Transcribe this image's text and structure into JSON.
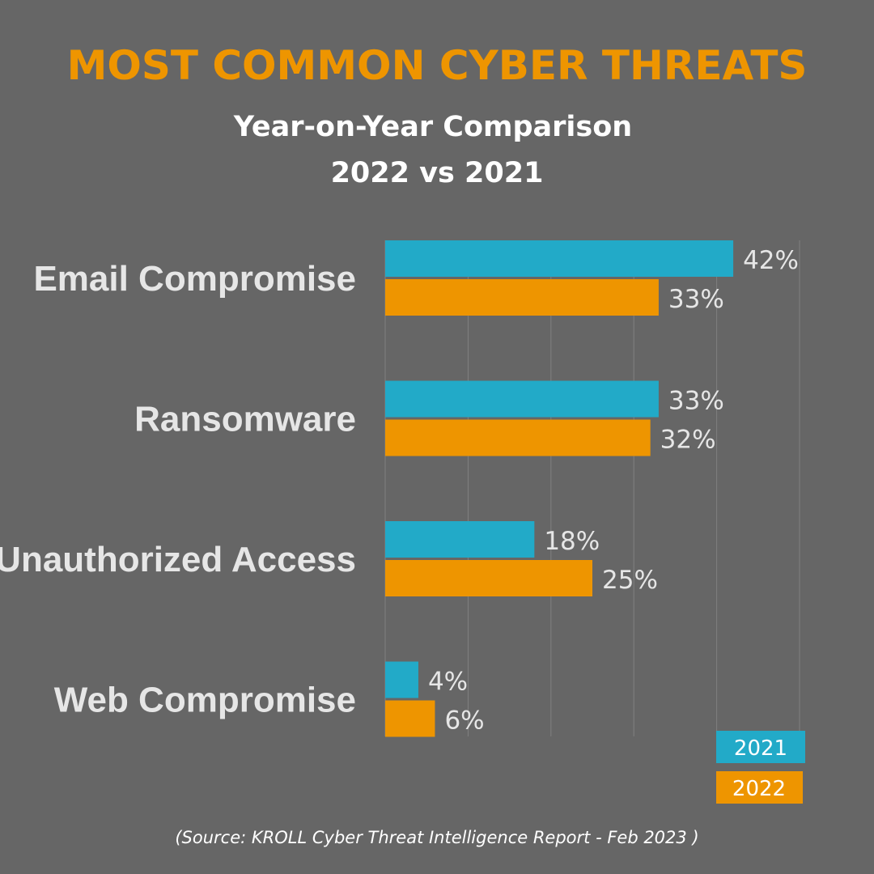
{
  "chart_data": {
    "type": "bar",
    "orientation": "horizontal",
    "title": "MOST COMMON CYBER THREATS",
    "subtitle": [
      "Year-on-Year Comparison",
      "2022 vs 2021"
    ],
    "categories": [
      "Email Compromise",
      "Ransomware",
      "Unauthorized Access",
      "Web Compromise"
    ],
    "series": [
      {
        "name": "2021",
        "values": [
          42,
          33,
          18,
          4
        ],
        "color": "#22aac8"
      },
      {
        "name": "2022",
        "values": [
          33,
          32,
          25,
          6
        ],
        "color": "#ee9500"
      }
    ],
    "value_suffix": "%",
    "xlim": [
      0,
      50
    ],
    "grid": true,
    "legend_placement": "bottom-right",
    "source": "(Source: KROLL Cyber Threat Intelligence Report - Feb 2023 )"
  },
  "colors": {
    "background": "#666666",
    "title": "#ee9500"
  }
}
